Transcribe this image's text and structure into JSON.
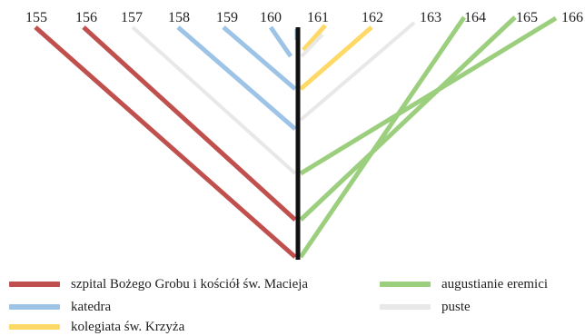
{
  "chart_data": {
    "type": "diagram",
    "tick_labels": [
      "155",
      "156",
      "157",
      "158",
      "159",
      "160",
      "161",
      "162",
      "163",
      "164",
      "165",
      "166"
    ],
    "legend": [
      {
        "key": "szpital",
        "label": "szpital Bożego Grobu i kościół św. Macieja",
        "color": "#c0504d"
      },
      {
        "key": "katedra",
        "label": "katedra",
        "color": "#9dc3e6"
      },
      {
        "key": "kolegiata",
        "label": "kolegiata św. Krzyża",
        "color": "#ffd966"
      },
      {
        "key": "augustianie",
        "label": "augustianie eremici",
        "color": "#9bcf7e"
      },
      {
        "key": "puste",
        "label": "puste",
        "color": "#e8e8e8"
      }
    ],
    "colors": {
      "axis": "#111111"
    }
  }
}
